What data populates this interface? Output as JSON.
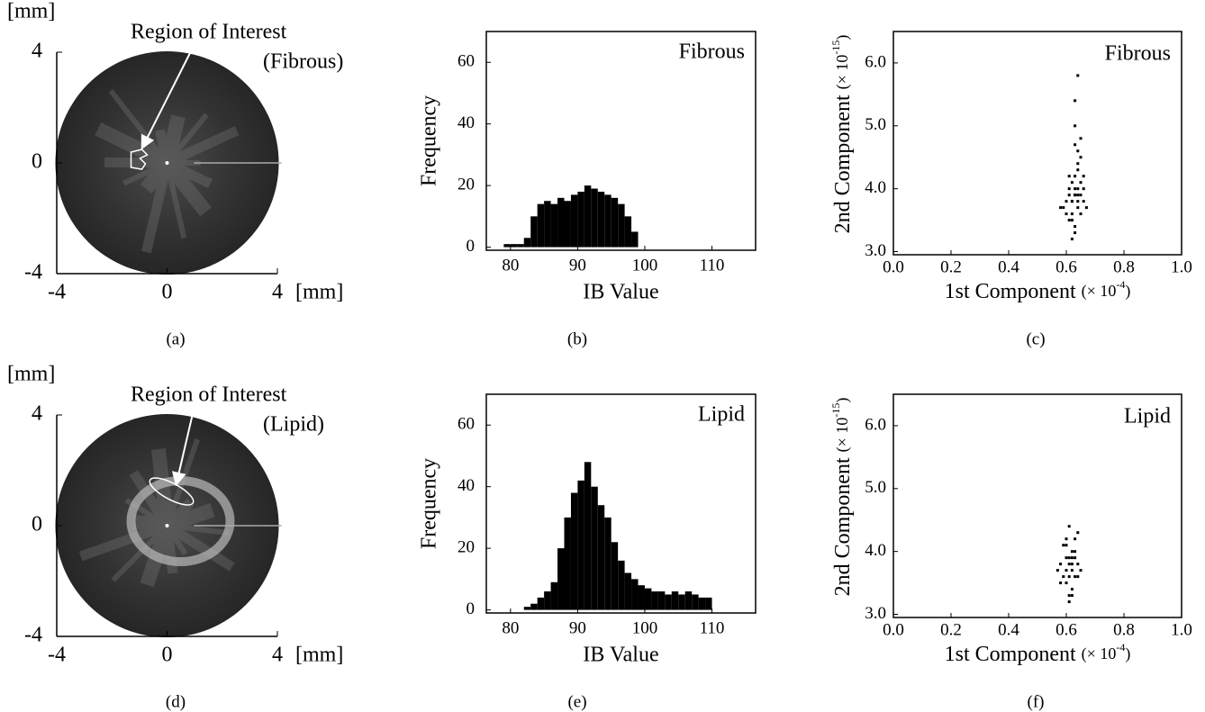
{
  "chart_data": [
    {
      "type": "ultrasound",
      "caption": "(a)",
      "xunit": "[mm]",
      "yunit": "[mm]",
      "annotation": "Region of Interest",
      "tissue": "(Fibrous)",
      "xlim": [
        -4,
        4
      ],
      "ylim": [
        -4,
        4
      ],
      "xticks": [
        -4,
        0,
        4
      ],
      "yticks": [
        -4,
        0,
        4
      ]
    },
    {
      "type": "histogram",
      "caption": "(b)",
      "title": "Fibrous",
      "xlabel": "IB Value",
      "ylabel": "Frequency",
      "bins": [
        79,
        80,
        81,
        82,
        83,
        84,
        85,
        86,
        87,
        88,
        89,
        90,
        91,
        92,
        93,
        94,
        95,
        96,
        97,
        98,
        99
      ],
      "values": [
        1,
        1,
        1,
        3,
        10,
        14,
        15,
        14,
        16,
        15,
        17,
        18,
        20,
        19,
        18,
        17,
        16,
        14,
        10,
        5
      ],
      "color": "#000000",
      "xlim": [
        76.4,
        116.5
      ],
      "ylim": [
        -1,
        70
      ],
      "xticks": [
        80,
        90,
        100,
        110
      ],
      "yticks": [
        0,
        20,
        40,
        60
      ]
    },
    {
      "type": "scatter",
      "caption": "(c)",
      "title": "Fibrous",
      "xlabel": "1st Component",
      "xlabel_unit": [
        "(× 10",
        "-4",
        ")"
      ],
      "ylabel": "2nd Component",
      "ylabel_unit": [
        "(× 10",
        "-15",
        ")"
      ],
      "x": [
        0.58,
        0.6,
        0.61,
        0.62,
        0.63,
        0.64,
        0.65,
        0.66,
        0.67,
        0.62,
        0.63,
        0.64,
        0.61,
        0.65,
        0.6,
        0.63,
        0.62,
        0.64,
        0.66,
        0.59,
        0.63,
        0.64,
        0.62,
        0.65,
        0.61,
        0.63,
        0.64,
        0.62,
        0.63,
        0.65,
        0.64,
        0.63,
        0.62,
        0.64,
        0.63,
        0.65,
        0.61,
        0.66,
        0.63,
        0.64
      ],
      "values": [
        3.7,
        3.6,
        3.9,
        3.8,
        4.0,
        3.9,
        4.1,
        3.8,
        3.7,
        3.5,
        3.3,
        4.3,
        4.2,
        4.5,
        3.8,
        4.7,
        3.2,
        4.0,
        4.2,
        3.7,
        5.0,
        4.6,
        3.6,
        3.9,
        4.0,
        3.4,
        4.4,
        4.1,
        5.4,
        4.8,
        3.7,
        3.9,
        3.8,
        5.8,
        4.2,
        3.6,
        3.5,
        4.0,
        3.9,
        3.8
      ],
      "color": "#000000",
      "xlim": [
        0,
        1
      ],
      "ylim": [
        2.95,
        6.5
      ],
      "xticks": [
        {
          "value": 0,
          "label": "0.0"
        },
        {
          "value": 0.2,
          "label": "0.2"
        },
        {
          "value": 0.4,
          "label": "0.4"
        },
        {
          "value": 0.6,
          "label": "0.6"
        },
        {
          "value": 0.8,
          "label": "0.8"
        },
        {
          "value": 1,
          "label": "1.0"
        }
      ],
      "yticks": [
        {
          "value": 3,
          "label": "3.0"
        },
        {
          "value": 4,
          "label": "4.0"
        },
        {
          "value": 5,
          "label": "5.0"
        },
        {
          "value": 6,
          "label": "6.0"
        }
      ]
    },
    {
      "type": "ultrasound",
      "caption": "(d)",
      "xunit": "[mm]",
      "yunit": "[mm]",
      "annotation": "Region of Interest",
      "tissue": "(Lipid)",
      "xlim": [
        -4,
        4
      ],
      "ylim": [
        -4,
        4
      ],
      "xticks": [
        -4,
        0,
        4
      ],
      "yticks": [
        -4,
        0,
        4
      ]
    },
    {
      "type": "histogram",
      "caption": "(e)",
      "title": "Lipid",
      "xlabel": "IB Value",
      "ylabel": "Frequency",
      "bins": [
        82,
        83,
        84,
        85,
        86,
        87,
        88,
        89,
        90,
        91,
        92,
        93,
        94,
        95,
        96,
        97,
        98,
        99,
        100,
        101,
        102,
        103,
        104,
        105,
        106,
        107,
        108,
        109,
        110
      ],
      "values": [
        1,
        2,
        4,
        6,
        9,
        20,
        30,
        38,
        42,
        48,
        40,
        34,
        30,
        22,
        16,
        12,
        10,
        8,
        7,
        6,
        6,
        5,
        6,
        5,
        6,
        5,
        4,
        4
      ],
      "color": "#000000",
      "xlim": [
        76.4,
        116.5
      ],
      "ylim": [
        -1,
        70
      ],
      "xticks": [
        80,
        90,
        100,
        110
      ],
      "yticks": [
        0,
        20,
        40,
        60
      ]
    },
    {
      "type": "scatter",
      "caption": "(f)",
      "title": "Lipid",
      "xlabel": "1st Component",
      "xlabel_unit": [
        "(× 10",
        "-4",
        ")"
      ],
      "ylabel": "2nd Component",
      "ylabel_unit": [
        "(× 10",
        "-15",
        ")"
      ],
      "x": [
        0.57,
        0.58,
        0.59,
        0.6,
        0.61,
        0.62,
        0.63,
        0.64,
        0.65,
        0.6,
        0.61,
        0.62,
        0.59,
        0.63,
        0.6,
        0.61,
        0.62,
        0.64,
        0.58,
        0.61,
        0.62,
        0.6,
        0.63,
        0.61,
        0.62,
        0.6,
        0.64,
        0.61,
        0.62,
        0.63
      ],
      "values": [
        3.7,
        3.8,
        3.6,
        3.9,
        3.8,
        3.7,
        3.9,
        3.8,
        3.7,
        3.5,
        3.3,
        4.0,
        4.1,
        3.6,
        4.2,
        3.2,
        3.9,
        4.3,
        3.5,
        4.4,
        3.4,
        3.7,
        4.0,
        3.6,
        3.8,
        4.1,
        3.6,
        3.9,
        3.3,
        4.2
      ],
      "color": "#000000",
      "xlim": [
        0,
        1
      ],
      "ylim": [
        2.95,
        6.5
      ],
      "xticks": [
        {
          "value": 0,
          "label": "0.0"
        },
        {
          "value": 0.2,
          "label": "0.2"
        },
        {
          "value": 0.4,
          "label": "0.4"
        },
        {
          "value": 0.6,
          "label": "0.6"
        },
        {
          "value": 0.8,
          "label": "0.8"
        },
        {
          "value": 1,
          "label": "1.0"
        }
      ],
      "yticks": [
        {
          "value": 3,
          "label": "3.0"
        },
        {
          "value": 4,
          "label": "4.0"
        },
        {
          "value": 5,
          "label": "5.0"
        },
        {
          "value": 6,
          "label": "6.0"
        }
      ]
    }
  ]
}
